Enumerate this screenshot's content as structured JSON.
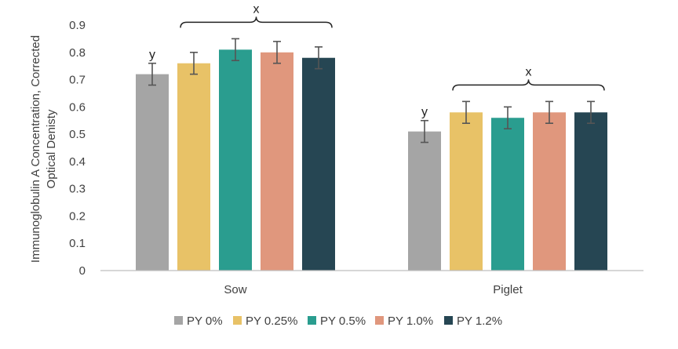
{
  "chart_data": {
    "type": "bar",
    "categories": [
      "Sow",
      "Piglet"
    ],
    "ylabel_lines": [
      "Immunoglobulin A  Concentration, Corrected",
      "Optical Denisty"
    ],
    "ylim": [
      0,
      0.9
    ],
    "yticks": [
      "0",
      "0.1",
      "0.2",
      "0.3",
      "0.4",
      "0.5",
      "0.6",
      "0.7",
      "0.8",
      "0.9"
    ],
    "grid": false,
    "legend_position": "bottom",
    "series": [
      {
        "name": "PY 0%",
        "color": "#a5a5a5",
        "values": [
          0.72,
          0.51
        ],
        "errors": [
          0.04,
          0.04
        ]
      },
      {
        "name": "PY 0.25%",
        "color": "#e8c267",
        "values": [
          0.76,
          0.58
        ],
        "errors": [
          0.04,
          0.04
        ]
      },
      {
        "name": "PY 0.5%",
        "color": "#2a9d8f",
        "values": [
          0.81,
          0.56
        ],
        "errors": [
          0.04,
          0.04
        ]
      },
      {
        "name": "PY 1.0%",
        "color": "#e0977d",
        "values": [
          0.8,
          0.58
        ],
        "errors": [
          0.04,
          0.04
        ]
      },
      {
        "name": "PY 1.2%",
        "color": "#264653",
        "values": [
          0.78,
          0.58
        ],
        "errors": [
          0.04,
          0.04
        ]
      }
    ],
    "annotations": [
      {
        "category": "Sow",
        "series_index": 0,
        "text": "y"
      },
      {
        "category": "Sow",
        "series_span": [
          1,
          4
        ],
        "text": "x"
      },
      {
        "category": "Piglet",
        "series_index": 0,
        "text": "y"
      },
      {
        "category": "Piglet",
        "series_span": [
          1,
          4
        ],
        "text": "x"
      }
    ]
  }
}
